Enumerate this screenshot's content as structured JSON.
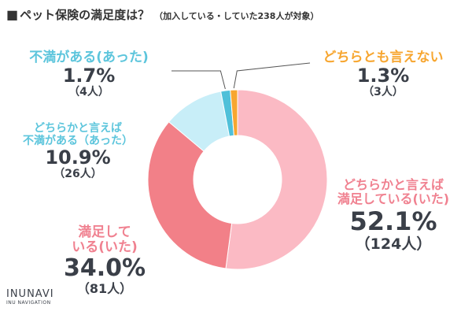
{
  "title": {
    "marker": "■",
    "main": "ペット保険の満足度は？",
    "sub": "（加入している・していた238人が対象）"
  },
  "chart_data": {
    "type": "pie",
    "donut": true,
    "title": "ペット保険の満足度は？",
    "subtitle": "（加入している・していた238人が対象）",
    "slices": [
      {
        "key": "satisfied",
        "label_lines": [
          "どちらかと言えば",
          "満足している(いた)"
        ],
        "value": 52.1,
        "pct_text": "52.1%",
        "count_text": "（124人）",
        "color": "#fbbac4",
        "label_color": "#f08190"
      },
      {
        "key": "satisfied_strong",
        "label_lines": [
          "満足して",
          "いる(いた)"
        ],
        "value": 34.0,
        "pct_text": "34.0%",
        "count_text": "（81人）",
        "color": "#f28088",
        "label_color": "#f08190"
      },
      {
        "key": "somewhat_unsatisfied",
        "label_lines": [
          "どちらかと言えば",
          "不満がある（あった）"
        ],
        "value": 10.9,
        "pct_text": "10.9%",
        "count_text": "（26人）",
        "color": "#c8eef8",
        "label_color": "#5cc5dc"
      },
      {
        "key": "unsatisfied",
        "label_lines": [
          "不満がある(あった)"
        ],
        "value": 1.7,
        "pct_text": "1.7%",
        "count_text": "（4人）",
        "color": "#4fc0d9",
        "label_color": "#5cc5dc"
      },
      {
        "key": "neutral",
        "label_lines": [
          "どちらとも言えない"
        ],
        "value": 1.3,
        "pct_text": "1.3%",
        "count_text": "（3人）",
        "color": "#f7a630",
        "label_color": "#f7a630"
      }
    ]
  },
  "logo": {
    "name": "INUNAVI",
    "tagline": "INU NAVIGATION"
  }
}
